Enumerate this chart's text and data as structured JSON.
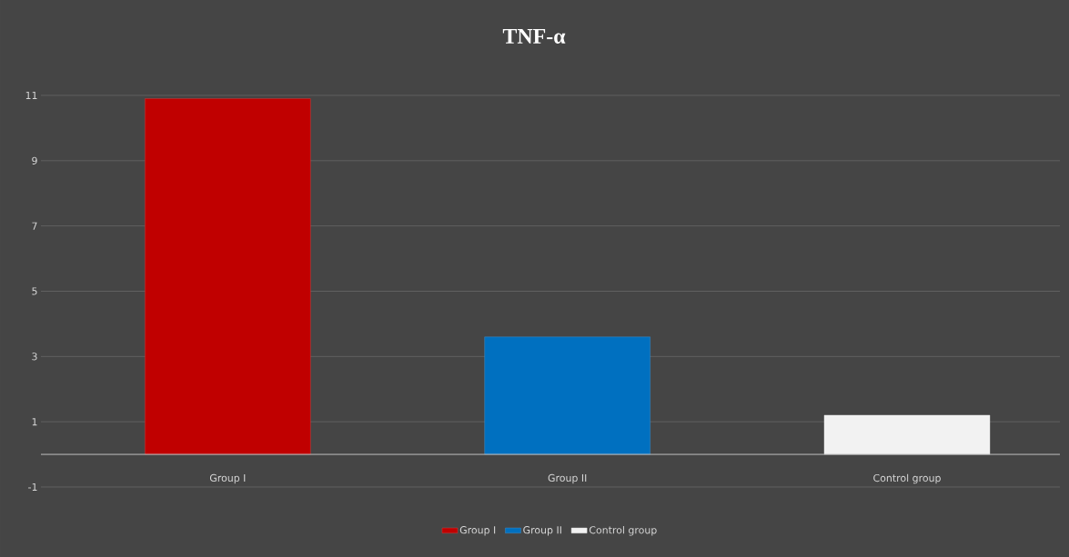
{
  "chart_data": {
    "type": "bar",
    "title": "TNF-α",
    "categories": [
      "Group I",
      "Group II",
      "Control group"
    ],
    "series": [
      {
        "name": "Group I",
        "color": "#c00000",
        "values": [
          10.9,
          null,
          null
        ]
      },
      {
        "name": "Group II",
        "color": "#0070c0",
        "values": [
          null,
          3.6,
          null
        ]
      },
      {
        "name": "Control group",
        "color": "#f2f2f2",
        "values": [
          null,
          null,
          1.2
        ]
      }
    ],
    "ylim": [
      -1,
      11
    ],
    "yticks": [
      -1,
      1,
      3,
      5,
      7,
      9,
      11
    ],
    "grid": "y",
    "legend": "bottom"
  }
}
